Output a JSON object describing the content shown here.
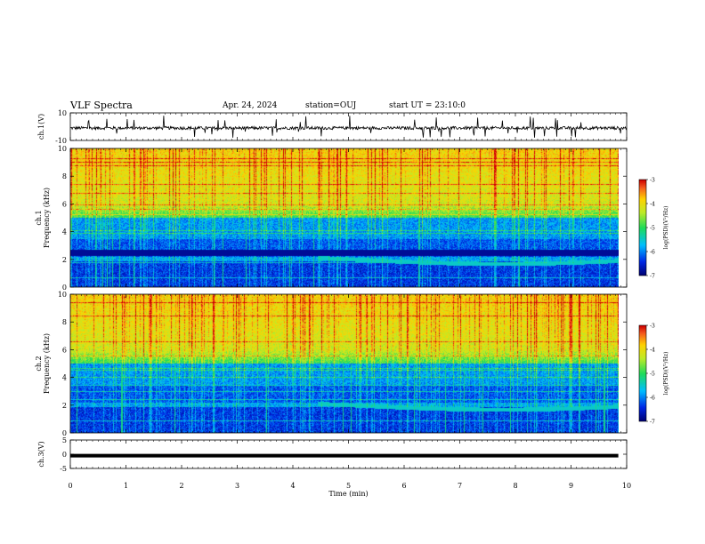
{
  "header": {
    "title": "VLF Spectra",
    "date": "Apr. 24, 2024",
    "station": "station=OUJ",
    "start_ut": "start UT =  23:10:0"
  },
  "chart_data": [
    {
      "type": "line",
      "panel": "ch1-waveform",
      "ylabel": "ch.1(V)",
      "ylim": [
        -10,
        10
      ],
      "yticks": [
        "10",
        "-10"
      ],
      "xlim": [
        0,
        10
      ],
      "description_level": -1,
      "color": "#000000"
    },
    {
      "type": "heatmap",
      "panel": "ch1-spectrogram",
      "ylabel_line1": "ch.1",
      "ylabel_line2": "Frequency (kHz)",
      "ylim": [
        0,
        10
      ],
      "yticks": [
        "0",
        "2",
        "4",
        "6",
        "8",
        "10"
      ],
      "xlim": [
        0,
        9.85
      ],
      "colorbar": {
        "label": "log(PSD)(V²/Hz)",
        "range": [
          -7,
          -3
        ],
        "ticks": [
          "-3",
          "-4",
          "-5",
          "-6",
          "-7"
        ]
      }
    },
    {
      "type": "heatmap",
      "panel": "ch2-spectrogram",
      "ylabel_line1": "ch.2",
      "ylabel_line2": "Frequency (kHz)",
      "ylim": [
        0,
        10
      ],
      "yticks": [
        "0",
        "2",
        "4",
        "6",
        "8",
        "10"
      ],
      "xlim": [
        0,
        9.85
      ],
      "colorbar": {
        "label": "log(PSD)(V²/Hz)",
        "range": [
          -7,
          -3
        ],
        "ticks": [
          "-3",
          "-4",
          "-5",
          "-6",
          "-7"
        ]
      }
    },
    {
      "type": "line",
      "panel": "ch3-waveform",
      "ylabel": "ch.3(V)",
      "ylim": [
        -5,
        5
      ],
      "yticks": [
        "5",
        "0",
        "-5"
      ],
      "xlim": [
        0,
        10
      ],
      "xlabel": "Time (min)",
      "xticks": [
        "0",
        "1",
        "2",
        "3",
        "4",
        "5",
        "6",
        "7",
        "8",
        "9",
        "10"
      ],
      "constant_value": -0.5,
      "color": "#000000"
    }
  ]
}
